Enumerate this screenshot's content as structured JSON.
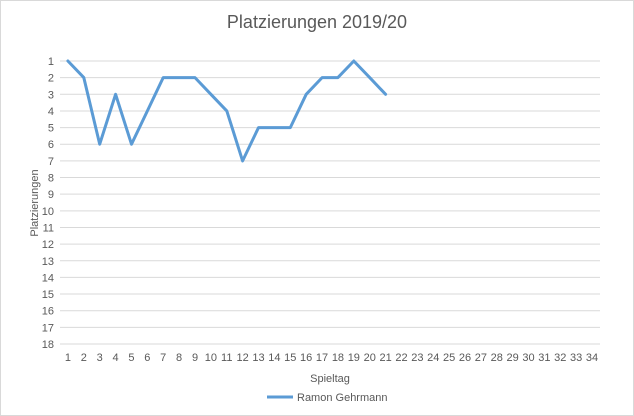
{
  "chart_data": {
    "type": "line",
    "title": "Platzierungen 2019/20",
    "xlabel": "Spieltag",
    "ylabel": "Platzierungen",
    "x_categories": [
      "1",
      "2",
      "3",
      "4",
      "5",
      "6",
      "7",
      "8",
      "9",
      "10",
      "11",
      "12",
      "13",
      "14",
      "15",
      "16",
      "17",
      "18",
      "19",
      "20",
      "21",
      "22",
      "23",
      "24",
      "25",
      "26",
      "27",
      "28",
      "29",
      "30",
      "31",
      "32",
      "33",
      "34"
    ],
    "y_ticks": [
      "1",
      "2",
      "3",
      "4",
      "5",
      "6",
      "7",
      "8",
      "9",
      "10",
      "11",
      "12",
      "13",
      "14",
      "15",
      "16",
      "17",
      "18"
    ],
    "ylim": [
      1,
      18
    ],
    "y_reversed": true,
    "grid": "horizontal",
    "legend_position": "bottom",
    "series": [
      {
        "name": "Ramon Gehrmann",
        "color": "#5b9bd5",
        "x": [
          1,
          2,
          3,
          4,
          5,
          6,
          7,
          8,
          9,
          10,
          11,
          12,
          13,
          14,
          15,
          16,
          17,
          18,
          19,
          20,
          21
        ],
        "values": [
          1,
          2,
          6,
          3,
          6,
          4,
          2,
          2,
          2,
          3,
          4,
          7,
          5,
          5,
          5,
          3,
          2,
          2,
          1,
          2,
          3
        ]
      }
    ]
  }
}
